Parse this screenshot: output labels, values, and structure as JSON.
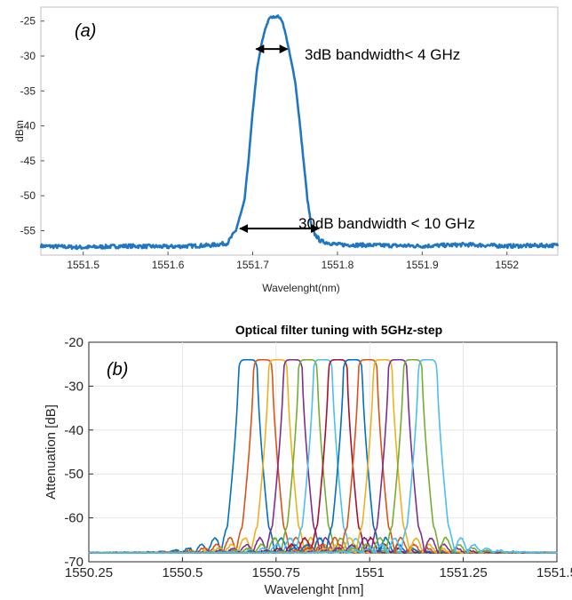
{
  "chart_data": [
    {
      "type": "line",
      "panel_label": "(a)",
      "xlabel": "Wavelenght(nm)",
      "ylabel": "dBm",
      "xlim": [
        1551.45,
        1552.06
      ],
      "ylim": [
        -58.5,
        -23
      ],
      "xticks": [
        1551.5,
        1551.6,
        1551.7,
        1551.8,
        1551.9,
        1552
      ],
      "xtick_labels": [
        "1551.5",
        "1551.6",
        "1551.7",
        "1551.8",
        "1551.9",
        "1552"
      ],
      "yticks": [
        -25,
        -30,
        -35,
        -40,
        -45,
        -50,
        -55
      ],
      "ytick_labels": [
        "-25",
        "-30",
        "-35",
        "-40",
        "-45",
        "-50",
        "-55"
      ],
      "grid": false,
      "color": "#1f77c4",
      "series": [
        {
          "x": [
            1551.45,
            1551.5,
            1551.55,
            1551.6,
            1551.65,
            1551.67,
            1551.68,
            1551.69,
            1551.695,
            1551.7,
            1551.705,
            1551.71,
            1551.715,
            1551.72,
            1551.73,
            1551.735,
            1551.74,
            1551.75,
            1551.755,
            1551.76,
            1551.765,
            1551.77,
            1551.78,
            1551.8,
            1551.85,
            1551.9,
            1551.95,
            1552.0,
            1552.06
          ],
          "y": [
            -57.2,
            -57.4,
            -57.2,
            -57.3,
            -57.1,
            -56.8,
            -55.0,
            -51.0,
            -45.0,
            -38.0,
            -32.0,
            -28.5,
            -26.0,
            -24.5,
            -24.3,
            -25.0,
            -27.5,
            -33.5,
            -39.0,
            -45.0,
            -51.0,
            -55.0,
            -56.5,
            -57.0,
            -57.1,
            -57.2,
            -57.0,
            -57.2,
            -57.1
          ]
        }
      ],
      "annotations": [
        {
          "text": "3dB bandwidth< 4 GHz",
          "x_from": 1551.704,
          "x_to": 1551.741,
          "y": -29
        },
        {
          "text": "30dB bandwidth < 10 GHz",
          "x_from": 1551.685,
          "x_to": 1551.778,
          "y": -54.7
        }
      ]
    },
    {
      "type": "line",
      "panel_label": "(b)",
      "title": "Optical filter tuning with 5GHz-step",
      "xlabel": "Wavelenght [nm]",
      "ylabel": "Attenuation [dB]",
      "xlim": [
        1550.25,
        1551.5
      ],
      "ylim": [
        -70,
        -20
      ],
      "xticks": [
        1550.25,
        1550.5,
        1550.75,
        1551,
        1551.25,
        1551.5
      ],
      "xtick_labels": [
        "1550.25",
        "1550.5",
        "1550.75",
        "1551",
        "1551.25",
        "1551.5"
      ],
      "yticks": [
        -20,
        -30,
        -40,
        -50,
        -60,
        -70
      ],
      "ytick_labels": [
        "-20",
        "-30",
        "-40",
        "-50",
        "-60",
        "-70"
      ],
      "grid": true,
      "baseline_db": -68,
      "peak_db": -24,
      "half_width_nm": 0.025,
      "skirt_nm": 0.03,
      "series": [
        {
          "center": 1550.675,
          "color": "#0072bd"
        },
        {
          "center": 1550.715,
          "color": "#d95319"
        },
        {
          "center": 1550.755,
          "color": "#edb120"
        },
        {
          "center": 1550.795,
          "color": "#7e2f8e"
        },
        {
          "center": 1550.835,
          "color": "#77ac30"
        },
        {
          "center": 1550.875,
          "color": "#4dbeee"
        },
        {
          "center": 1550.915,
          "color": "#a2142f"
        },
        {
          "center": 1550.955,
          "color": "#0072bd"
        },
        {
          "center": 1550.995,
          "color": "#d95319"
        },
        {
          "center": 1551.035,
          "color": "#edb120"
        },
        {
          "center": 1551.075,
          "color": "#7e2f8e"
        },
        {
          "center": 1551.115,
          "color": "#77ac30"
        },
        {
          "center": 1551.155,
          "color": "#4dbeee"
        }
      ]
    }
  ]
}
